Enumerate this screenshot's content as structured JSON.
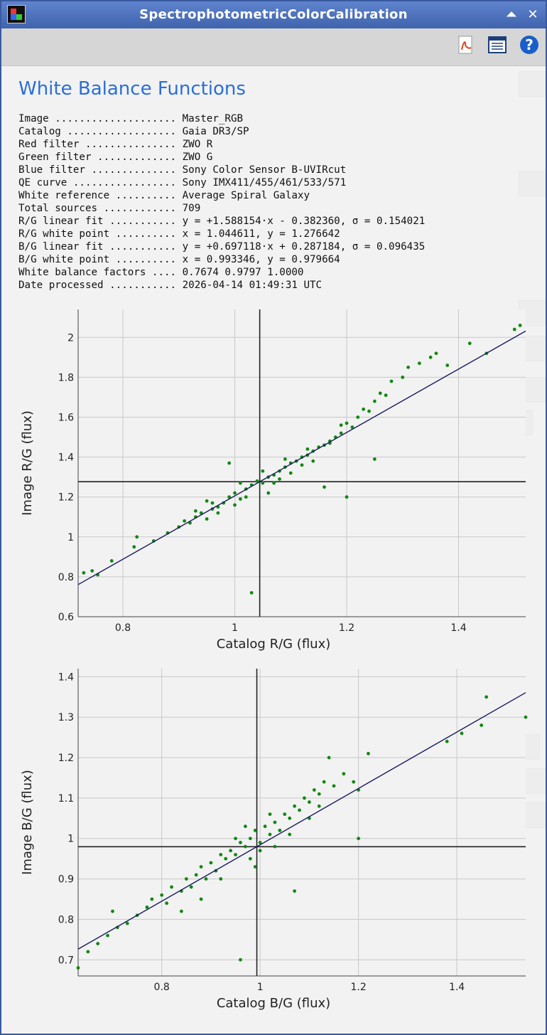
{
  "window": {
    "title": "SpectrophotometricColorCalibration",
    "buttons": {
      "shade": "⏶",
      "close": "✕"
    }
  },
  "toolbar": {
    "icons": [
      "pdf-icon",
      "list-icon",
      "help-icon"
    ],
    "help_glyph": "?"
  },
  "heading": "White Balance Functions",
  "info_rows": [
    "Image .................... Master_RGB",
    "Catalog .................. Gaia DR3/SP",
    "Red filter ............... ZWO R",
    "Green filter ............. ZWO G",
    "Blue filter .............. Sony Color Sensor B-UVIRcut",
    "QE curve ................. Sony IMX411/455/461/533/571",
    "White reference .......... Average Spiral Galaxy",
    "Total sources ............ 709",
    "R/G linear fit ........... y = +1.588154·x - 0.382360, σ = 0.154021",
    "R/G white point .......... x = 1.044611, y = 1.276642",
    "B/G linear fit ........... y = +0.697118·x + 0.287184, σ = 0.096435",
    "B/G white point .......... x = 0.993346, y = 0.979664",
    "White balance factors .... 0.7674 0.9797 1.0000",
    "Date processed ........... 2026-04-14 01:49:31 UTC"
  ],
  "colors": {
    "accent": "#2a6fd6",
    "points": "#118811",
    "fit_line": "#1a1a66",
    "grid": "#c8c8c8"
  },
  "chart_data": [
    {
      "type": "scatter",
      "xlabel": "Catalog R/G (flux)",
      "ylabel": "Image R/G (flux)",
      "xlim": [
        0.72,
        1.52
      ],
      "ylim": [
        0.6,
        2.14
      ],
      "xticks": [
        0.8,
        1,
        1.2,
        1.4
      ],
      "xtick_labels": [
        "0.8",
        "1",
        "1.2",
        "1.4"
      ],
      "yticks": [
        0.6,
        0.8,
        1,
        1.2,
        1.4,
        1.6,
        1.8,
        2
      ],
      "ytick_labels": [
        "0.6",
        "0.8",
        "1",
        "1.2",
        "1.4",
        "1.6",
        "1.8",
        "2"
      ],
      "grid": true,
      "fit": {
        "slope": 1.588154,
        "intercept": -0.38236
      },
      "white_point": {
        "x": 1.044611,
        "y": 1.276642
      },
      "points": [
        [
          0.73,
          0.82
        ],
        [
          0.745,
          0.83
        ],
        [
          0.755,
          0.81
        ],
        [
          0.78,
          0.88
        ],
        [
          0.82,
          0.95
        ],
        [
          0.825,
          1.0
        ],
        [
          0.855,
          0.98
        ],
        [
          0.88,
          1.02
        ],
        [
          0.9,
          1.05
        ],
        [
          0.91,
          1.08
        ],
        [
          0.92,
          1.07
        ],
        [
          0.93,
          1.1
        ],
        [
          0.94,
          1.12
        ],
        [
          0.95,
          1.09
        ],
        [
          0.96,
          1.14
        ],
        [
          0.97,
          1.15
        ],
        [
          0.98,
          1.17
        ],
        [
          0.99,
          1.2
        ],
        [
          1.0,
          1.22
        ],
        [
          1.01,
          1.19
        ],
        [
          1.02,
          1.24
        ],
        [
          1.03,
          1.26
        ],
        [
          1.04,
          1.28
        ],
        [
          1.05,
          1.27
        ],
        [
          1.06,
          1.3
        ],
        [
          1.07,
          1.31
        ],
        [
          1.08,
          1.33
        ],
        [
          1.09,
          1.35
        ],
        [
          1.1,
          1.37
        ],
        [
          1.11,
          1.38
        ],
        [
          1.12,
          1.4
        ],
        [
          1.13,
          1.41
        ],
        [
          1.14,
          1.43
        ],
        [
          1.15,
          1.45
        ],
        [
          1.16,
          1.46
        ],
        [
          1.17,
          1.48
        ],
        [
          1.18,
          1.5
        ],
        [
          1.19,
          1.52
        ],
        [
          1.2,
          1.57
        ],
        [
          1.21,
          1.55
        ],
        [
          1.22,
          1.6
        ],
        [
          1.23,
          1.64
        ],
        [
          1.24,
          1.63
        ],
        [
          1.25,
          1.68
        ],
        [
          1.26,
          1.72
        ],
        [
          1.27,
          1.71
        ],
        [
          1.28,
          1.78
        ],
        [
          1.3,
          1.8
        ],
        [
          1.31,
          1.85
        ],
        [
          1.33,
          1.87
        ],
        [
          1.35,
          1.9
        ],
        [
          1.36,
          1.92
        ],
        [
          1.38,
          1.86
        ],
        [
          1.42,
          1.97
        ],
        [
          1.45,
          1.92
        ],
        [
          1.5,
          2.04
        ],
        [
          1.51,
          2.06
        ],
        [
          0.99,
          1.37
        ],
        [
          1.03,
          0.72
        ],
        [
          1.16,
          1.25
        ],
        [
          1.2,
          1.2
        ],
        [
          1.25,
          1.39
        ],
        [
          1.19,
          1.56
        ],
        [
          0.95,
          1.18
        ],
        [
          0.97,
          1.12
        ],
        [
          1.0,
          1.16
        ],
        [
          1.02,
          1.2
        ],
        [
          1.06,
          1.22
        ],
        [
          1.08,
          1.29
        ],
        [
          1.1,
          1.32
        ],
        [
          1.12,
          1.36
        ],
        [
          1.14,
          1.38
        ],
        [
          1.05,
          1.33
        ],
        [
          0.93,
          1.13
        ],
        [
          0.96,
          1.17
        ],
        [
          1.01,
          1.27
        ],
        [
          1.07,
          1.27
        ],
        [
          1.13,
          1.44
        ],
        [
          1.17,
          1.47
        ],
        [
          1.09,
          1.39
        ]
      ]
    },
    {
      "type": "scatter",
      "xlabel": "Catalog B/G (flux)",
      "ylabel": "Image B/G (flux)",
      "xlim": [
        0.63,
        1.54
      ],
      "ylim": [
        0.66,
        1.42
      ],
      "xticks": [
        0.8,
        1,
        1.2,
        1.4
      ],
      "xtick_labels": [
        "0.8",
        "1",
        "1.2",
        "1.4"
      ],
      "yticks": [
        0.7,
        0.8,
        0.9,
        1,
        1.1,
        1.2,
        1.3,
        1.4
      ],
      "ytick_labels": [
        "0.7",
        "0.8",
        "0.9",
        "1",
        "1.1",
        "1.2",
        "1.3",
        "1.4"
      ],
      "grid": true,
      "fit": {
        "slope": 0.697118,
        "intercept": 0.287184
      },
      "white_point": {
        "x": 0.993346,
        "y": 0.979664
      },
      "points": [
        [
          0.63,
          0.68
        ],
        [
          0.65,
          0.72
        ],
        [
          0.67,
          0.74
        ],
        [
          0.69,
          0.76
        ],
        [
          0.7,
          0.82
        ],
        [
          0.71,
          0.78
        ],
        [
          0.73,
          0.79
        ],
        [
          0.75,
          0.81
        ],
        [
          0.77,
          0.83
        ],
        [
          0.78,
          0.85
        ],
        [
          0.8,
          0.86
        ],
        [
          0.81,
          0.84
        ],
        [
          0.82,
          0.88
        ],
        [
          0.84,
          0.87
        ],
        [
          0.85,
          0.9
        ],
        [
          0.86,
          0.88
        ],
        [
          0.87,
          0.91
        ],
        [
          0.88,
          0.93
        ],
        [
          0.89,
          0.9
        ],
        [
          0.9,
          0.94
        ],
        [
          0.91,
          0.92
        ],
        [
          0.92,
          0.96
        ],
        [
          0.93,
          0.95
        ],
        [
          0.94,
          0.97
        ],
        [
          0.95,
          0.96
        ],
        [
          0.96,
          0.99
        ],
        [
          0.97,
          0.98
        ],
        [
          0.98,
          1.0
        ],
        [
          0.99,
          1.02
        ],
        [
          1.0,
          0.99
        ],
        [
          1.01,
          1.03
        ],
        [
          1.02,
          1.01
        ],
        [
          1.03,
          1.04
        ],
        [
          1.04,
          1.02
        ],
        [
          1.05,
          1.06
        ],
        [
          1.06,
          1.05
        ],
        [
          1.07,
          1.08
        ],
        [
          1.08,
          1.07
        ],
        [
          1.09,
          1.1
        ],
        [
          1.1,
          1.09
        ],
        [
          1.11,
          1.12
        ],
        [
          1.12,
          1.11
        ],
        [
          1.13,
          1.14
        ],
        [
          1.15,
          1.13
        ],
        [
          1.17,
          1.16
        ],
        [
          1.19,
          1.14
        ],
        [
          1.2,
          1.12
        ],
        [
          1.22,
          1.21
        ],
        [
          1.38,
          1.24
        ],
        [
          1.41,
          1.26
        ],
        [
          1.45,
          1.28
        ],
        [
          1.46,
          1.35
        ],
        [
          1.54,
          1.3
        ],
        [
          0.96,
          0.7
        ],
        [
          1.07,
          0.87
        ],
        [
          1.2,
          1.0
        ],
        [
          1.14,
          1.2
        ],
        [
          0.99,
          0.93
        ],
        [
          1.0,
          0.97
        ],
        [
          0.95,
          1.0
        ],
        [
          1.03,
          0.98
        ],
        [
          0.92,
          0.9
        ],
        [
          0.88,
          0.85
        ],
        [
          0.84,
          0.82
        ],
        [
          1.06,
          1.01
        ],
        [
          1.1,
          1.05
        ],
        [
          1.12,
          1.08
        ],
        [
          0.98,
          0.95
        ],
        [
          1.02,
          1.06
        ],
        [
          0.97,
          1.03
        ]
      ]
    }
  ]
}
